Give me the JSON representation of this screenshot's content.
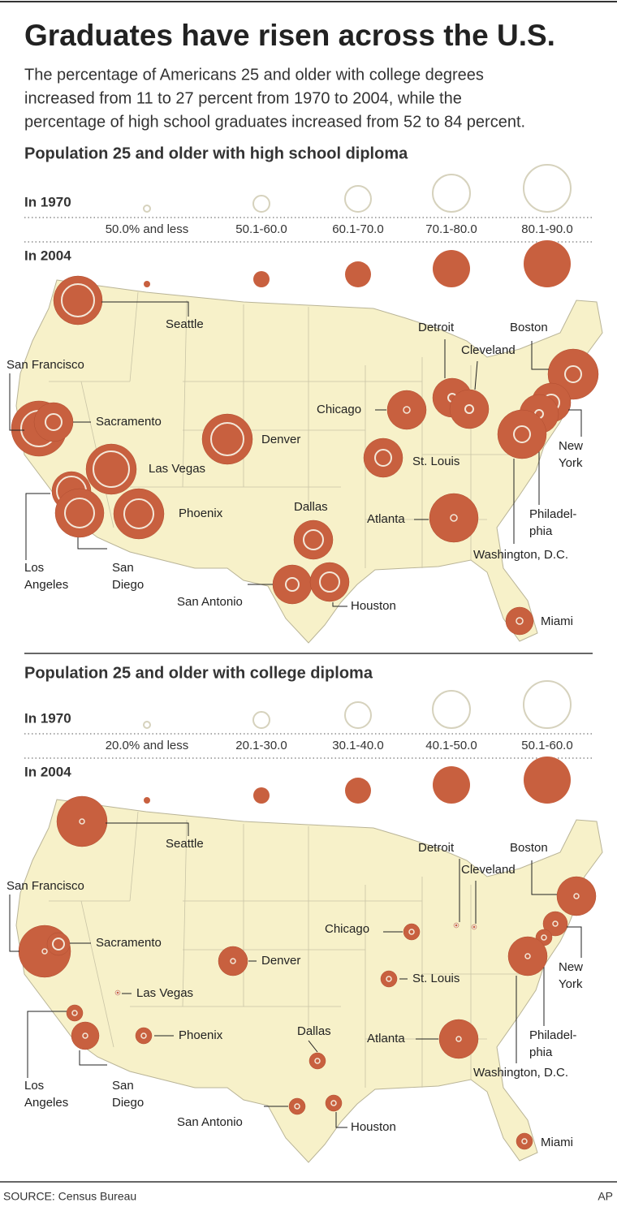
{
  "header": {
    "title": "Graduates have risen across the U.S.",
    "subtitle": [
      "The percentage of Americans 25 and older with college degrees",
      "increased from 11 to 27 percent from 1970 to 2004, while the",
      "percentage of high school graduates increased from 52 to 84 percent."
    ]
  },
  "sections": [
    {
      "heading": "Population 25 and older with high school diploma",
      "legend": {
        "row_1970": "In 1970",
        "row_2004": "In 2004",
        "bins": [
          "50.0% and less",
          "50.1-60.0",
          "60.1-70.0",
          "70.1-80.0",
          "80.1-90.0"
        ]
      },
      "cities": [
        [
          "Seattle"
        ],
        [
          "San Francisco"
        ],
        [
          "Sacramento"
        ],
        [
          "Las Vegas"
        ],
        [
          "Los",
          "Angeles"
        ],
        [
          "San",
          "Diego"
        ],
        [
          "Phoenix"
        ],
        [
          "Denver"
        ],
        [
          "Dallas"
        ],
        [
          "San Antonio"
        ],
        [
          "Houston"
        ],
        [
          "Chicago"
        ],
        [
          "St. Louis"
        ],
        [
          "Detroit"
        ],
        [
          "Cleveland"
        ],
        [
          "Boston"
        ],
        [
          "New",
          "York"
        ],
        [
          "Philadel-",
          "phia"
        ],
        [
          "Washington, D.C."
        ],
        [
          "Atlanta"
        ],
        [
          "Miami"
        ]
      ]
    },
    {
      "heading": "Population 25 and older with college diploma",
      "legend": {
        "row_1970": "In 1970",
        "row_2004": "In 2004",
        "bins": [
          "20.0% and less",
          "20.1-30.0",
          "30.1-40.0",
          "40.1-50.0",
          "50.1-60.0"
        ]
      },
      "cities": [
        [
          "Seattle"
        ],
        [
          "San Francisco"
        ],
        [
          "Sacramento"
        ],
        [
          "Las Vegas"
        ],
        [
          "Los",
          "Angeles"
        ],
        [
          "San",
          "Diego"
        ],
        [
          "Phoenix"
        ],
        [
          "Denver"
        ],
        [
          "Dallas"
        ],
        [
          "San Antonio"
        ],
        [
          "Houston"
        ],
        [
          "Chicago"
        ],
        [
          "St. Louis"
        ],
        [
          "Detroit"
        ],
        [
          "Cleveland"
        ],
        [
          "Boston"
        ],
        [
          "New",
          "York"
        ],
        [
          "Philadel-",
          "phia"
        ],
        [
          "Washington, D.C."
        ],
        [
          "Atlanta"
        ],
        [
          "Miami"
        ]
      ]
    }
  ],
  "footer": {
    "source": "SOURCE: Census Bureau",
    "credit": "AP"
  }
}
